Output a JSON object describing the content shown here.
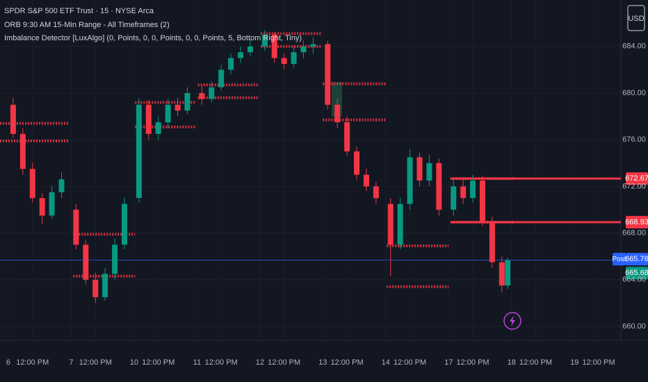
{
  "chart_data": {
    "type": "candlestick",
    "title": "SPDR S&P 500 ETF Trust · 15 · NYSE Arca",
    "indicators": [
      "ORB 9:30 AM 15-Min Range - All Timeframes (2)",
      "Imbalance Detector [LuxAlgo] (0, Points, 0, 0, Points, 0, 0, Points, 5, Bottom Right, Tiny)"
    ],
    "currency": "USD",
    "up_color": "#089981",
    "down_color": "#f23645",
    "x": [
      0.5,
      1.5,
      2.5,
      3.5,
      4.5,
      5.5,
      7,
      8,
      9,
      10,
      11,
      12,
      13.5,
      14.5,
      15.5,
      16.5,
      17.5,
      18.5,
      20,
      21,
      22,
      23,
      24,
      25,
      26.5,
      27.5,
      28.5,
      29.5,
      30.5,
      31.5,
      33,
      34,
      35,
      36,
      37,
      38,
      39.5,
      40.5,
      41.5,
      42.5,
      43.5,
      44.5,
      46,
      47,
      48,
      49,
      50,
      51,
      51.6
    ],
    "open": [
      679.0,
      676.5,
      673.5,
      671.0,
      669.5,
      671.5,
      670.0,
      667.0,
      664.0,
      662.5,
      664.5,
      667.0,
      671.0,
      679.0,
      676.5,
      677.5,
      679.0,
      678.5,
      680.0,
      679.5,
      680.5,
      682.0,
      683.0,
      683.5,
      684.0,
      685.0,
      683.0,
      682.5,
      683.5,
      684.0,
      684.2,
      679.0,
      677.5,
      675.0,
      673.0,
      672.0,
      670.5,
      667.0,
      670.5,
      674.5,
      672.5,
      674.0,
      670.0,
      672.0,
      671.0,
      672.5,
      669.0,
      665.5,
      663.5
    ],
    "high": [
      679.6,
      677.0,
      674.0,
      671.4,
      672.0,
      673.2,
      670.5,
      667.4,
      664.6,
      665.0,
      667.5,
      671.0,
      679.6,
      679.4,
      678.0,
      679.5,
      679.6,
      680.5,
      680.6,
      681.0,
      682.4,
      683.4,
      684.0,
      684.6,
      685.4,
      685.2,
      683.4,
      684.0,
      684.5,
      684.8,
      684.5,
      679.5,
      678.0,
      675.4,
      673.5,
      672.4,
      671.0,
      671.0,
      675.2,
      674.9,
      674.7,
      674.4,
      672.6,
      672.8,
      673.0,
      672.9,
      669.4,
      666.0,
      665.9
    ],
    "low": [
      676.2,
      673.0,
      670.6,
      668.8,
      669.2,
      671.0,
      666.6,
      663.6,
      662.0,
      662.2,
      664.0,
      666.6,
      670.6,
      676.0,
      676.0,
      677.0,
      678.0,
      678.2,
      679.0,
      679.2,
      680.2,
      681.6,
      682.6,
      683.2,
      683.6,
      682.6,
      682.0,
      682.2,
      683.0,
      683.4,
      678.6,
      677.0,
      674.6,
      672.6,
      671.6,
      670.5,
      664.3,
      666.6,
      670.0,
      672.0,
      672.0,
      669.5,
      669.5,
      670.5,
      670.6,
      668.6,
      665.0,
      662.9,
      663.2
    ],
    "close": [
      676.5,
      673.5,
      671.0,
      669.5,
      671.5,
      672.6,
      667.0,
      664.0,
      662.5,
      664.5,
      667.0,
      670.5,
      679.0,
      676.5,
      677.5,
      679.0,
      678.5,
      680.0,
      679.5,
      680.5,
      682.0,
      683.0,
      683.5,
      684.0,
      685.0,
      683.0,
      682.5,
      683.5,
      684.0,
      684.2,
      679.0,
      677.5,
      675.0,
      673.0,
      672.0,
      671.0,
      667.0,
      670.5,
      674.5,
      672.5,
      674.0,
      670.0,
      672.0,
      671.0,
      672.5,
      669.0,
      665.5,
      663.5,
      665.68
    ],
    "xlim": [
      -0.86,
      63.3
    ],
    "xticks": [
      {
        "value": 0,
        "label": "6"
      },
      {
        "value": 2.5,
        "label": "12:00 PM"
      },
      {
        "value": 6.5,
        "label": "7"
      },
      {
        "value": 9,
        "label": "12:00 PM"
      },
      {
        "value": 13,
        "label": "10"
      },
      {
        "value": 15.5,
        "label": "12:00 PM"
      },
      {
        "value": 19.5,
        "label": "11"
      },
      {
        "value": 22,
        "label": "12:00 PM"
      },
      {
        "value": 26,
        "label": "12"
      },
      {
        "value": 28.5,
        "label": "12:00 PM"
      },
      {
        "value": 32.5,
        "label": "13"
      },
      {
        "value": 35,
        "label": "12:00 PM"
      },
      {
        "value": 39,
        "label": "14"
      },
      {
        "value": 41.5,
        "label": "12:00 PM"
      },
      {
        "value": 45.5,
        "label": "17"
      },
      {
        "value": 48,
        "label": "12:00 PM"
      },
      {
        "value": 52,
        "label": "18"
      },
      {
        "value": 54.5,
        "label": "12:00 PM"
      },
      {
        "value": 58.5,
        "label": "19"
      },
      {
        "value": 61,
        "label": "12:00 PM"
      }
    ],
    "ylim": [
      659.1,
      687.98
    ],
    "yticks": [
      {
        "value": 660,
        "label": "660.00"
      },
      {
        "value": 664,
        "label": "664.00"
      },
      {
        "value": 668,
        "label": "668.00"
      },
      {
        "value": 672,
        "label": "672.00"
      },
      {
        "value": 676,
        "label": "676.00"
      },
      {
        "value": 680,
        "label": "680.00"
      },
      {
        "value": 684,
        "label": "684.00"
      }
    ],
    "grid": true,
    "range_levels": [
      {
        "x": [
          -0.86,
          6.3
        ],
        "values": [
          677.4,
          675.9
        ]
      },
      {
        "x": [
          6.7,
          13.1
        ],
        "values": [
          667.9,
          664.3
        ]
      },
      {
        "x": [
          13.1,
          19.3
        ],
        "values": [
          679.2,
          677.1
        ]
      },
      {
        "x": [
          19.6,
          25.9
        ],
        "values": [
          680.7,
          679.6
        ]
      },
      {
        "x": [
          26.1,
          32.4
        ],
        "values": [
          685.1,
          684.0
        ]
      },
      {
        "x": [
          32.5,
          39.0
        ],
        "values": [
          680.8,
          677.7
        ]
      },
      {
        "x": [
          39.1,
          45.5
        ],
        "values": [
          666.9,
          663.4
        ]
      },
      {
        "x": [
          45.7,
          52.2
        ],
        "values": [
          672.67,
          668.93
        ]
      }
    ],
    "level_color": "#f23645",
    "price_tags": [
      {
        "value": 672.67,
        "color": "#f23645"
      },
      {
        "value": 668.93,
        "color": "#f23645"
      },
      {
        "value": 665.76,
        "color": "#2962ff",
        "label": "Post"
      },
      {
        "value": 665.68,
        "color": "#089981"
      }
    ]
  }
}
